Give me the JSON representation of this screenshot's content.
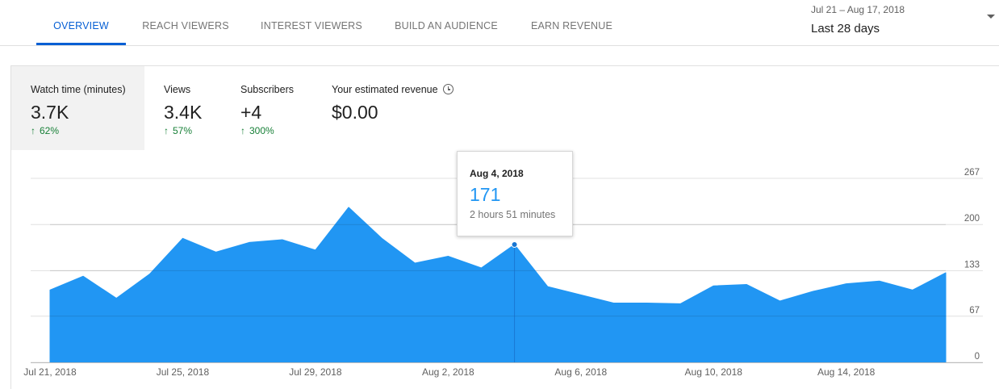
{
  "tabs": [
    {
      "label": "OVERVIEW",
      "active": true
    },
    {
      "label": "REACH VIEWERS",
      "active": false
    },
    {
      "label": "INTEREST VIEWERS",
      "active": false
    },
    {
      "label": "BUILD AN AUDIENCE",
      "active": false
    },
    {
      "label": "EARN REVENUE",
      "active": false
    }
  ],
  "date_range": {
    "range": "Jul 21 – Aug 17, 2018",
    "period": "Last 28 days"
  },
  "metrics": [
    {
      "label": "Watch time (minutes)",
      "value": "3.7K",
      "delta": "62%",
      "selected": true
    },
    {
      "label": "Views",
      "value": "3.4K",
      "delta": "57%",
      "selected": false
    },
    {
      "label": "Subscribers",
      "value": "+4",
      "delta": "300%",
      "selected": false
    },
    {
      "label": "Your estimated revenue",
      "value": "$0.00",
      "delta": "",
      "selected": false
    }
  ],
  "icons": {
    "delta_arrow": "arrow-up-icon",
    "revenue_info": "clock-icon",
    "date_dropdown": "caret-down-icon"
  },
  "colors": {
    "accent": "#065fd4",
    "series": "#2196f3",
    "positive": "#188038"
  },
  "tooltip": {
    "date": "Aug 4, 2018",
    "value": "171",
    "subtext": "2 hours 51 minutes"
  },
  "chart_data": {
    "type": "area",
    "x": [
      "Jul 21, 2018",
      "Jul 22, 2018",
      "Jul 23, 2018",
      "Jul 24, 2018",
      "Jul 25, 2018",
      "Jul 26, 2018",
      "Jul 27, 2018",
      "Jul 28, 2018",
      "Jul 29, 2018",
      "Jul 30, 2018",
      "Jul 31, 2018",
      "Aug 1, 2018",
      "Aug 2, 2018",
      "Aug 3, 2018",
      "Aug 4, 2018",
      "Aug 5, 2018",
      "Aug 6, 2018",
      "Aug 7, 2018",
      "Aug 8, 2018",
      "Aug 9, 2018",
      "Aug 10, 2018",
      "Aug 11, 2018",
      "Aug 12, 2018",
      "Aug 13, 2018",
      "Aug 14, 2018",
      "Aug 15, 2018",
      "Aug 16, 2018",
      "Aug 17, 2018"
    ],
    "values": [
      105,
      125,
      93,
      128,
      180,
      160,
      174,
      178,
      163,
      225,
      180,
      144,
      154,
      137,
      171,
      110,
      98,
      86,
      86,
      85,
      111,
      113,
      89,
      103,
      114,
      118,
      105,
      130
    ],
    "x_tick_labels": [
      "Jul 21, 2018",
      "Jul 25, 2018",
      "Jul 29, 2018",
      "Aug 2, 2018",
      "Aug 6, 2018",
      "Aug 10, 2018",
      "Aug 14, 2018"
    ],
    "x_tick_index": [
      0,
      4,
      8,
      12,
      16,
      20,
      24
    ],
    "y_ticks": [
      0,
      67,
      133,
      200,
      267
    ],
    "ylim": [
      0,
      267
    ],
    "highlight_index": 14,
    "grid": true,
    "y_axis_side": "right"
  }
}
